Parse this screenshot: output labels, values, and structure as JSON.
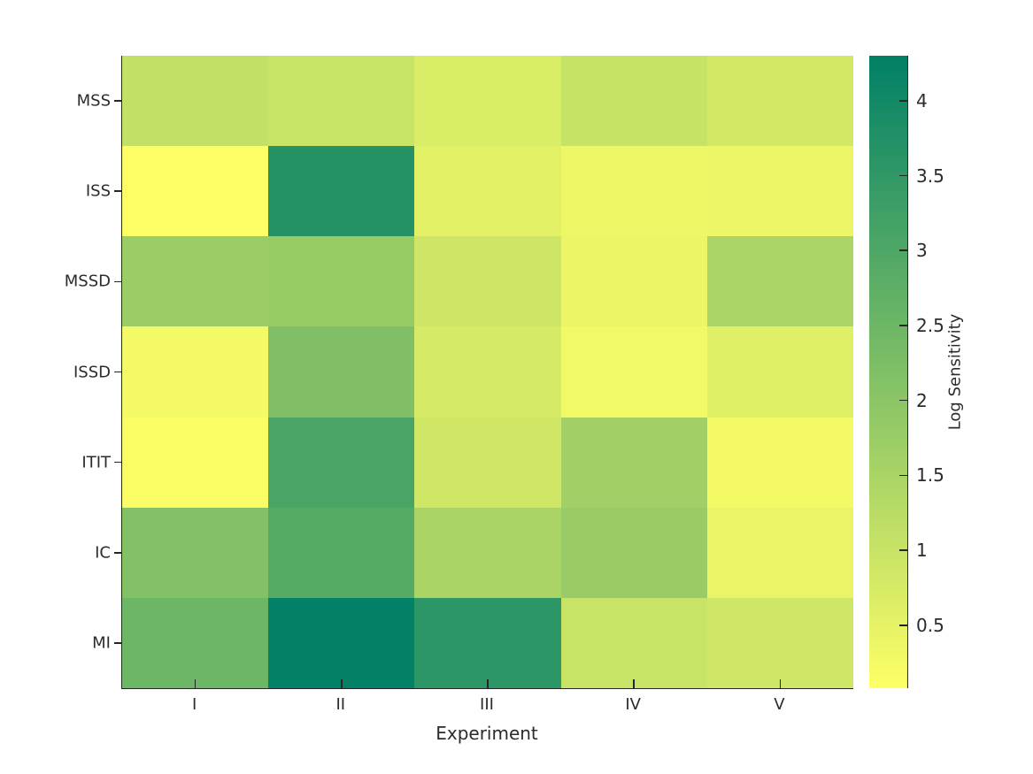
{
  "figure": {
    "background": "#ffffff",
    "axis_color": "#262626",
    "text_color": "#2b2b2b"
  },
  "chart_data": {
    "type": "heatmap",
    "title": "",
    "xlabel": "Experiment",
    "ylabel": "",
    "x_categories": [
      "I",
      "II",
      "III",
      "IV",
      "V"
    ],
    "y_categories": [
      "MSS",
      "ISS",
      "MSSD",
      "ISSD",
      "ITIT",
      "IC",
      "MI"
    ],
    "values": [
      [
        1.09,
        0.99,
        0.69,
        1.01,
        0.8
      ],
      [
        0.09,
        3.69,
        0.56,
        0.36,
        0.38
      ],
      [
        1.73,
        1.8,
        0.91,
        0.4,
        1.47
      ],
      [
        0.26,
        2.19,
        0.78,
        0.29,
        0.59
      ],
      [
        0.15,
        3.08,
        0.86,
        1.62,
        0.26
      ],
      [
        2.13,
        2.9,
        1.49,
        1.77,
        0.43
      ],
      [
        2.51,
        4.26,
        3.57,
        0.99,
        0.88
      ]
    ],
    "grid": false,
    "legend_position": "none",
    "colorbar": {
      "label": "Log Sensitivity",
      "tick_values": [
        0.5,
        1,
        1.5,
        2,
        2.5,
        3,
        3.5,
        4
      ],
      "tick_labels": [
        "0.5",
        "1",
        "1.5",
        "2",
        "2.5",
        "3",
        "3.5",
        "4"
      ],
      "vmin": 0.08,
      "vmax": 4.3,
      "colormap": "summer_r",
      "color_min": "#ffff66",
      "color_max": "#008066"
    }
  }
}
